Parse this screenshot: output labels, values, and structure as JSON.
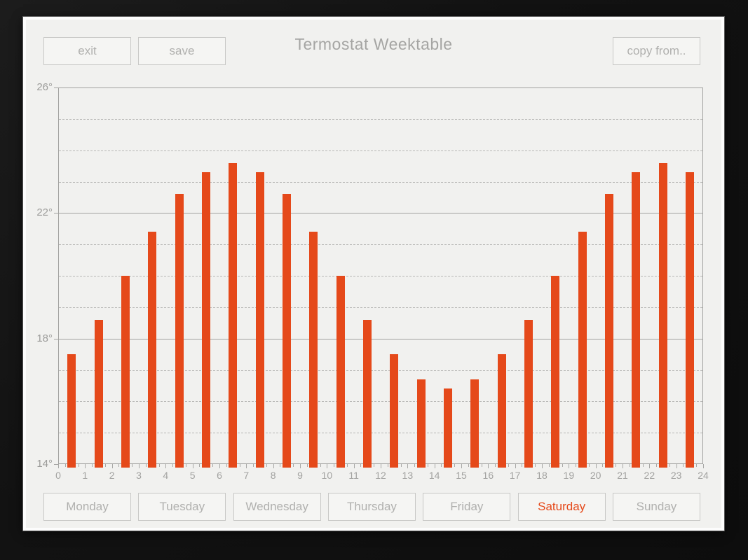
{
  "window": {
    "title": "Termostat Weektable"
  },
  "toolbar": {
    "exit_label": "exit",
    "save_label": "save",
    "copy_from_label": "copy from.."
  },
  "day_tabs": {
    "items": [
      {
        "label": "Monday",
        "selected": false
      },
      {
        "label": "Tuesday",
        "selected": false
      },
      {
        "label": "Wednesday",
        "selected": false
      },
      {
        "label": "Thursday",
        "selected": false
      },
      {
        "label": "Friday",
        "selected": false
      },
      {
        "label": "Saturday",
        "selected": true
      },
      {
        "label": "Sunday",
        "selected": false
      }
    ]
  },
  "chart_data": {
    "type": "bar",
    "title": "",
    "x": [
      0,
      1,
      2,
      3,
      4,
      5,
      6,
      7,
      8,
      9,
      10,
      11,
      12,
      13,
      14,
      15,
      16,
      17,
      18,
      19,
      20,
      21,
      22,
      23
    ],
    "values": [
      17.5,
      18.6,
      20,
      21.4,
      22.6,
      23.3,
      23.6,
      23.3,
      22.6,
      21.4,
      20,
      18.6,
      17.5,
      16.7,
      16.4,
      16.7,
      17.5,
      18.6,
      20,
      21.4,
      22.6,
      23.3,
      23.6,
      23.3
    ],
    "xlim": [
      0,
      24
    ],
    "ylim": [
      14,
      26
    ],
    "x_tick_labels": [
      "0",
      "1",
      "2",
      "3",
      "4",
      "5",
      "6",
      "7",
      "8",
      "9",
      "10",
      "11",
      "12",
      "13",
      "14",
      "15",
      "16",
      "17",
      "18",
      "19",
      "20",
      "21",
      "22",
      "23",
      "24"
    ],
    "y_axis_labels": [
      {
        "value": 26,
        "text": "26°"
      },
      {
        "value": 22,
        "text": "22°"
      },
      {
        "value": 18,
        "text": "18°"
      },
      {
        "value": 14,
        "text": "14°"
      }
    ],
    "y_ticks_solid": [
      26,
      22,
      18,
      14
    ],
    "y_ticks_dashed": [
      25,
      24,
      23,
      21,
      20,
      19,
      17,
      16,
      15
    ],
    "grid": "horizontal",
    "legend": "none",
    "bar_color": "#e5491a"
  },
  "colors": {
    "accent": "#e5491a",
    "panel_bg": "#f1f1ef",
    "outer_bg": "#121212",
    "button_border": "#c8c8c6",
    "muted_text": "#b0b0ae",
    "axis_text": "#9c9c9a"
  }
}
